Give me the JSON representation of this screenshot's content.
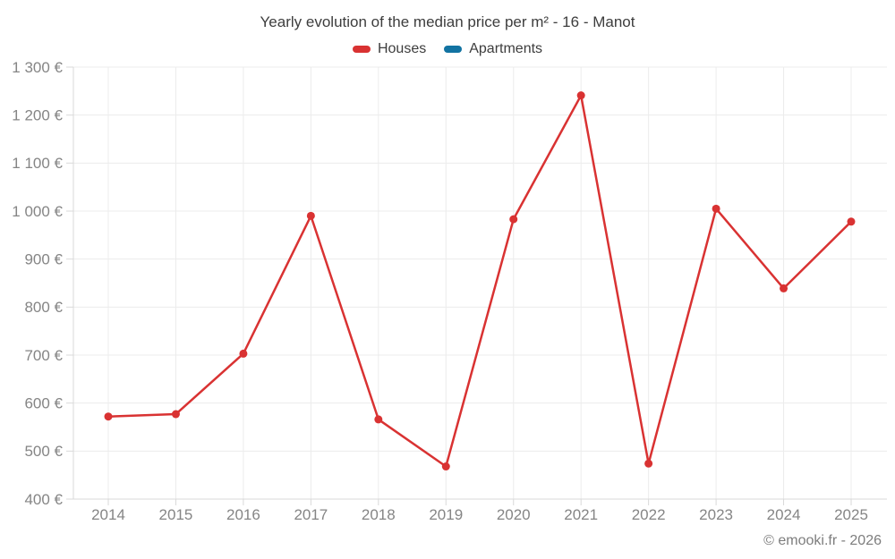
{
  "title": "Yearly evolution of the median price per m² - 16 - Manot",
  "legend": [
    {
      "label": "Houses",
      "color": "#d93232"
    },
    {
      "label": "Apartments",
      "color": "#1273a2"
    }
  ],
  "footer": "© emooki.fr - 2026",
  "colors": {
    "grid": "#ececec",
    "axis_border": "#d9d9d9",
    "tick": "#d9d9d9",
    "axis_label": "#858585"
  },
  "chart_data": {
    "type": "line",
    "title": "Yearly evolution of the median price per m² - 16 - Manot",
    "x": [
      "2014",
      "2015",
      "2016",
      "2017",
      "2018",
      "2019",
      "2020",
      "2021",
      "2022",
      "2023",
      "2024",
      "2025"
    ],
    "series": [
      {
        "name": "Houses",
        "color": "#d93232",
        "values": [
          572,
          577,
          703,
          990,
          566,
          468,
          983,
          1241,
          474,
          1005,
          839,
          978
        ]
      },
      {
        "name": "Apartments",
        "color": "#1273a2",
        "values": []
      }
    ],
    "ylim": [
      400,
      1300
    ],
    "ytick_step": 100,
    "yticks": [
      "400 €",
      "500 €",
      "600 €",
      "700 €",
      "800 €",
      "900 €",
      "1 000 €",
      "1 100 €",
      "1 200 €",
      "1 300 €"
    ],
    "xlabel": "",
    "ylabel": "",
    "grid": true,
    "legend_position": "top"
  }
}
